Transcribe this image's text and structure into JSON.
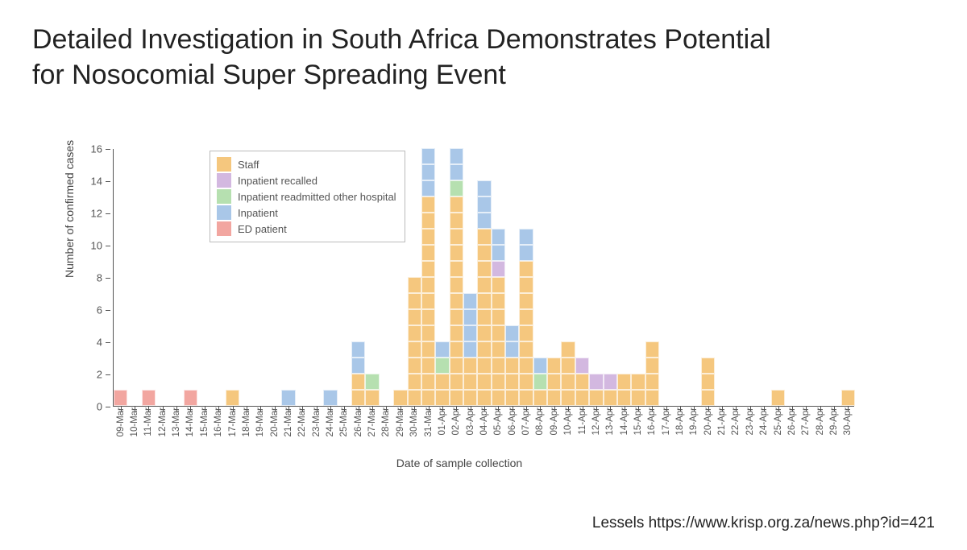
{
  "title": "Detailed Investigation in South Africa Demonstrates Potential for Nosocomial Super Spreading Event",
  "citation": "Lessels  https://www.krisp.org.za/news.php?id=421",
  "chart": {
    "type": "stacked-bar",
    "ylabel": "Number of confirmed cases",
    "xlabel": "Date of sample collection",
    "ylim": [
      0,
      16
    ],
    "ytick_step": 2,
    "yticks": [
      0,
      2,
      4,
      6,
      8,
      10,
      12,
      14,
      16
    ],
    "axis_color": "#555555",
    "tick_fontsize": 12,
    "label_fontsize": 14,
    "background_color": "#ffffff",
    "categories": {
      "staff": {
        "label": "Staff",
        "color": "#f5c77e"
      },
      "recalled": {
        "label": "Inpatient recalled",
        "color": "#d3b8e0"
      },
      "readmit": {
        "label": "Inpatient readmitted other hospital",
        "color": "#b6e0b0"
      },
      "inpatient": {
        "label": "Inpatient",
        "color": "#a9c7e8"
      },
      "ed": {
        "label": "ED patient",
        "color": "#f2a6a0"
      }
    },
    "legend_order": [
      "staff",
      "recalled",
      "readmit",
      "inpatient",
      "ed"
    ],
    "dates": [
      "09-Mar",
      "10-Mar",
      "11-Mar",
      "12-Mar",
      "13-Mar",
      "14-Mar",
      "15-Mar",
      "16-Mar",
      "17-Mar",
      "18-Mar",
      "19-Mar",
      "20-Mar",
      "21-Mar",
      "22-Mar",
      "23-Mar",
      "24-Mar",
      "25-Mar",
      "26-Mar",
      "27-Mar",
      "28-Mar",
      "29-Mar",
      "30-Mar",
      "31-Mar",
      "01-Apr",
      "02-Apr",
      "03-Apr",
      "04-Apr",
      "05-Apr",
      "06-Apr",
      "07-Apr",
      "08-Apr",
      "09-Apr",
      "10-Apr",
      "11-Apr",
      "12-Apr",
      "13-Apr",
      "14-Apr",
      "15-Apr",
      "16-Apr",
      "17-Apr",
      "18-Apr",
      "19-Apr",
      "20-Apr",
      "21-Apr",
      "22-Apr",
      "23-Apr",
      "24-Apr",
      "25-Apr",
      "26-Apr",
      "27-Apr",
      "28-Apr",
      "29-Apr",
      "30-Apr"
    ],
    "stacks": [
      [
        "ed"
      ],
      [],
      [
        "ed"
      ],
      [],
      [],
      [
        "ed"
      ],
      [],
      [],
      [
        "staff"
      ],
      [],
      [],
      [],
      [
        "inpatient"
      ],
      [],
      [],
      [
        "inpatient"
      ],
      [],
      [
        "staff",
        "staff",
        "inpatient",
        "inpatient"
      ],
      [
        "staff",
        "readmit"
      ],
      [],
      [
        "staff"
      ],
      [
        "staff",
        "staff",
        "staff",
        "staff",
        "staff",
        "staff",
        "staff",
        "staff"
      ],
      [
        "staff",
        "staff",
        "staff",
        "staff",
        "staff",
        "staff",
        "staff",
        "staff",
        "staff",
        "staff",
        "staff",
        "staff",
        "staff",
        "inpatient",
        "inpatient",
        "inpatient"
      ],
      [
        "staff",
        "staff",
        "readmit",
        "inpatient"
      ],
      [
        "staff",
        "staff",
        "staff",
        "staff",
        "staff",
        "staff",
        "staff",
        "staff",
        "staff",
        "staff",
        "staff",
        "staff",
        "staff",
        "readmit",
        "inpatient",
        "inpatient"
      ],
      [
        "staff",
        "staff",
        "staff",
        "inpatient",
        "inpatient",
        "inpatient",
        "inpatient"
      ],
      [
        "staff",
        "staff",
        "staff",
        "staff",
        "staff",
        "staff",
        "staff",
        "staff",
        "staff",
        "staff",
        "staff",
        "inpatient",
        "inpatient",
        "inpatient"
      ],
      [
        "staff",
        "staff",
        "staff",
        "staff",
        "staff",
        "staff",
        "staff",
        "staff",
        "recalled",
        "inpatient",
        "inpatient"
      ],
      [
        "staff",
        "staff",
        "staff",
        "inpatient",
        "inpatient"
      ],
      [
        "staff",
        "staff",
        "staff",
        "staff",
        "staff",
        "staff",
        "staff",
        "staff",
        "staff",
        "inpatient",
        "inpatient"
      ],
      [
        "staff",
        "readmit",
        "inpatient"
      ],
      [
        "staff",
        "staff",
        "staff"
      ],
      [
        "staff",
        "staff",
        "staff",
        "staff"
      ],
      [
        "staff",
        "staff",
        "recalled"
      ],
      [
        "staff",
        "recalled"
      ],
      [
        "staff",
        "recalled"
      ],
      [
        "staff",
        "staff"
      ],
      [
        "staff",
        "staff"
      ],
      [
        "staff",
        "staff",
        "staff",
        "staff"
      ],
      [],
      [],
      [],
      [
        "staff",
        "staff",
        "staff"
      ],
      [],
      [],
      [],
      [],
      [
        "staff"
      ],
      [],
      [],
      [],
      [],
      [
        "staff"
      ],
      []
    ]
  }
}
